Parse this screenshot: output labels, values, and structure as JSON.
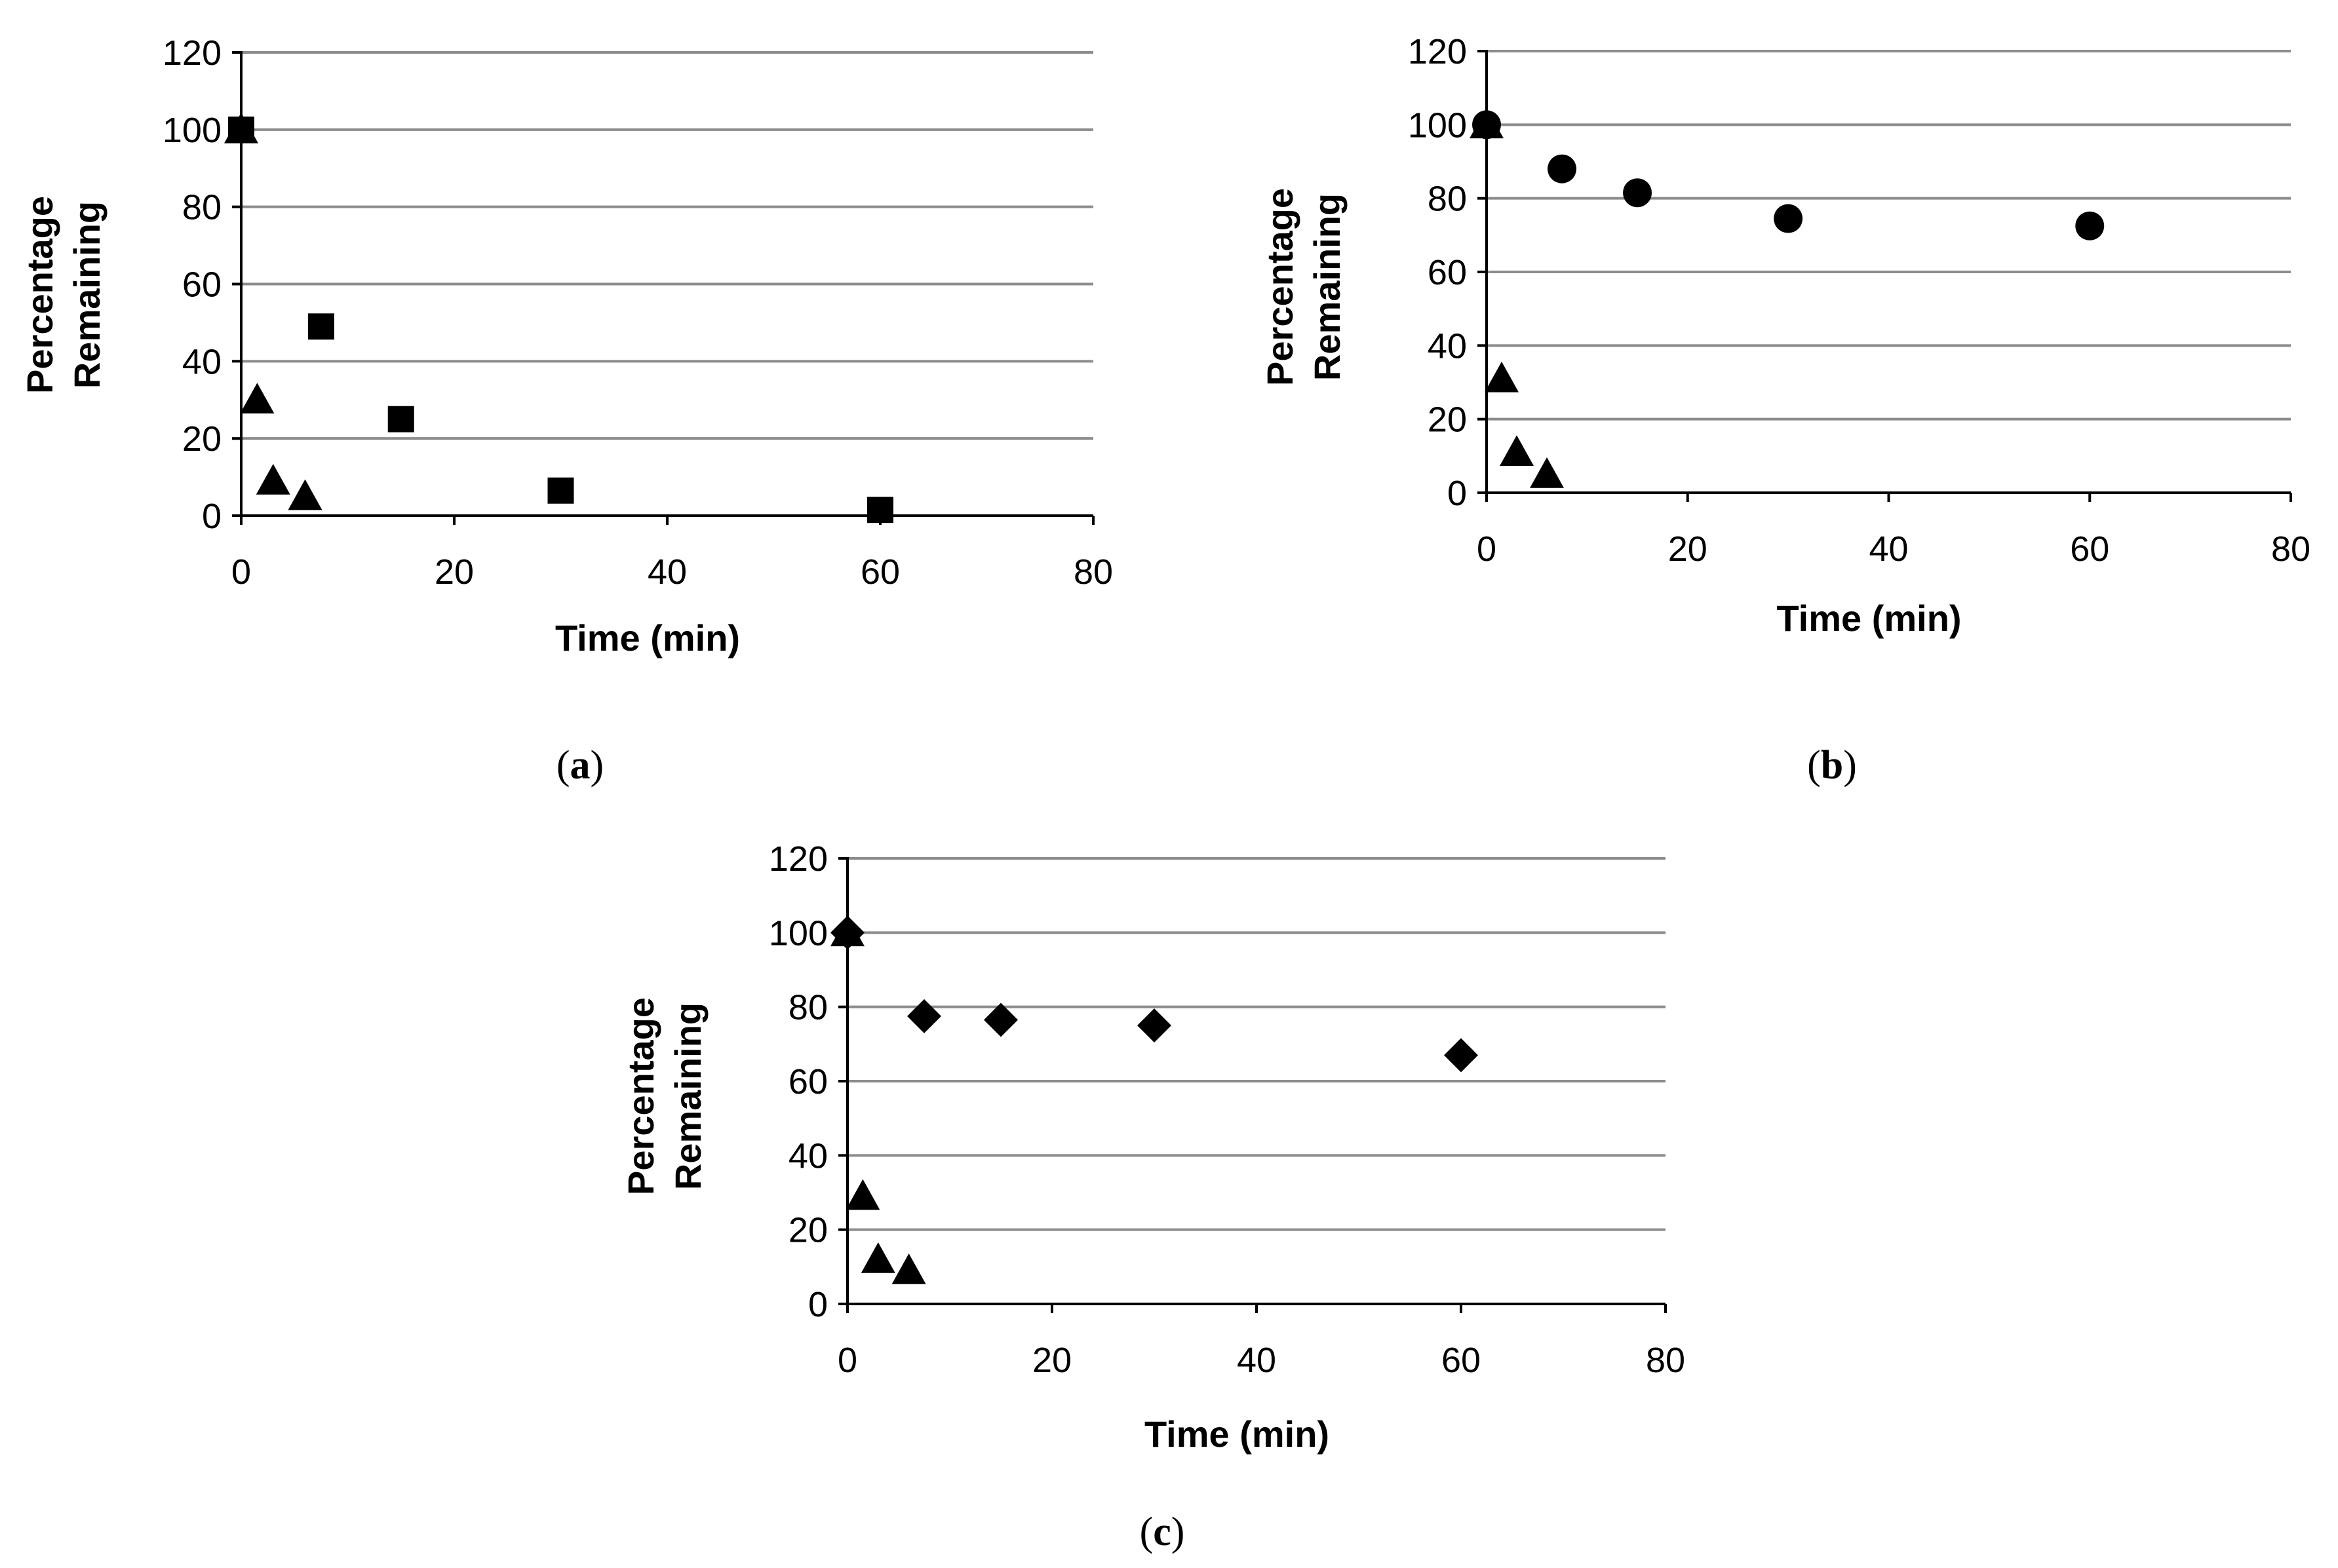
{
  "chart_data": [
    {
      "type": "scatter",
      "panel_id": "a",
      "caption_letter": "a",
      "xlabel": "Time (min)",
      "ylabel_lines": [
        "Percentage",
        "Remaining"
      ],
      "xlim": [
        0,
        80
      ],
      "ylim": [
        0,
        120
      ],
      "x_ticks": [
        0,
        20,
        40,
        60,
        80
      ],
      "y_ticks": [
        0,
        20,
        40,
        60,
        80,
        100,
        120
      ],
      "grid": "horizontal",
      "series": [
        {
          "name": "square",
          "marker": "square",
          "x": [
            0,
            7.5,
            15,
            30,
            60
          ],
          "y": [
            100,
            49,
            25,
            6.5,
            1.5
          ]
        },
        {
          "name": "triangle",
          "marker": "triangle",
          "x": [
            0,
            1.5,
            3,
            6
          ],
          "y": [
            100,
            30,
            9,
            5
          ]
        }
      ]
    },
    {
      "type": "scatter",
      "panel_id": "b",
      "caption_letter": "b",
      "xlabel": "Time (min)",
      "ylabel_lines": [
        "Percentage",
        "Remaining"
      ],
      "xlim": [
        0,
        80
      ],
      "ylim": [
        0,
        120
      ],
      "x_ticks": [
        0,
        20,
        40,
        60,
        80
      ],
      "y_ticks": [
        0,
        20,
        40,
        60,
        80,
        100,
        120
      ],
      "grid": "horizontal",
      "series": [
        {
          "name": "circle",
          "marker": "circle",
          "x": [
            0,
            7.5,
            15,
            30,
            60
          ],
          "y": [
            100,
            88,
            81.5,
            74.5,
            72.5
          ]
        },
        {
          "name": "triangle",
          "marker": "triangle",
          "x": [
            0,
            1.5,
            3,
            6
          ],
          "y": [
            100,
            31,
            11,
            5
          ]
        }
      ]
    },
    {
      "type": "scatter",
      "panel_id": "c",
      "caption_letter": "c",
      "xlabel": "Time (min)",
      "ylabel_lines": [
        "Percentage",
        "Remaining"
      ],
      "xlim": [
        0,
        80
      ],
      "ylim": [
        0,
        120
      ],
      "x_ticks": [
        0,
        20,
        40,
        60,
        80
      ],
      "y_ticks": [
        0,
        20,
        40,
        60,
        80,
        100,
        120
      ],
      "grid": "horizontal",
      "series": [
        {
          "name": "diamond",
          "marker": "diamond",
          "x": [
            0,
            7.5,
            15,
            30,
            60
          ],
          "y": [
            100,
            77.5,
            76.5,
            75,
            67
          ]
        },
        {
          "name": "triangle",
          "marker": "triangle",
          "x": [
            0,
            1.5,
            3,
            6
          ],
          "y": [
            100,
            29,
            12,
            9
          ]
        }
      ]
    }
  ]
}
